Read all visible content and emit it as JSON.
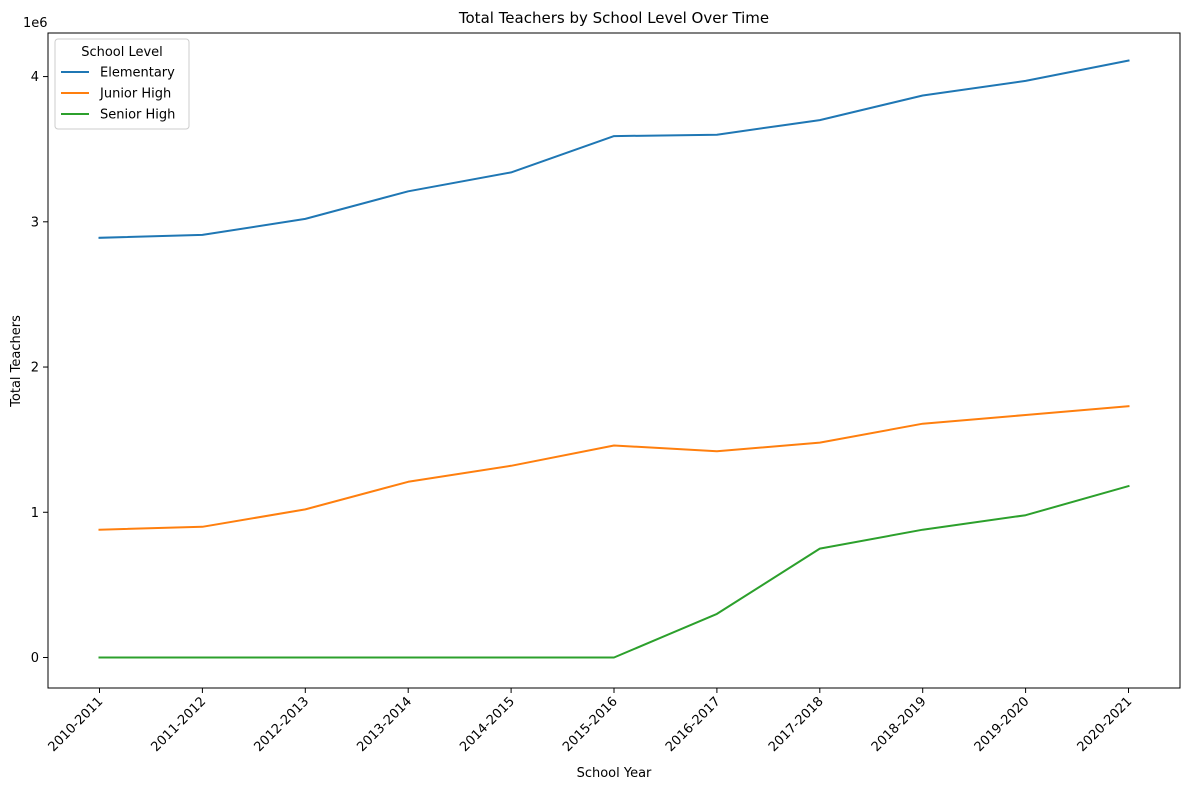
{
  "chart_data": {
    "type": "line",
    "title": "Total Teachers by School Level Over Time",
    "xlabel": "School Year",
    "ylabel": "Total Teachers",
    "y_scale_label": "1e6",
    "categories": [
      "2010-2011",
      "2011-2012",
      "2012-2013",
      "2013-2014",
      "2014-2015",
      "2015-2016",
      "2016-2017",
      "2017-2018",
      "2018-2019",
      "2019-2020",
      "2020-2021"
    ],
    "yticks": [
      0,
      1,
      2,
      3,
      4
    ],
    "ylim": [
      -0.21,
      4.3
    ],
    "grid": false,
    "legend": {
      "title": "School Level",
      "position": "top-left"
    },
    "series": [
      {
        "name": "Elementary",
        "color": "#1f77b4",
        "values": [
          2.89,
          2.91,
          3.02,
          3.21,
          3.34,
          3.59,
          3.6,
          3.7,
          3.87,
          3.97,
          4.11
        ]
      },
      {
        "name": "Junior High",
        "color": "#ff7f0e",
        "values": [
          0.88,
          0.9,
          1.02,
          1.21,
          1.32,
          1.46,
          1.42,
          1.48,
          1.61,
          1.67,
          1.73
        ]
      },
      {
        "name": "Senior High",
        "color": "#2ca02c",
        "values": [
          0.0,
          0.0,
          0.0,
          0.0,
          0.0,
          0.0,
          0.3,
          0.75,
          0.88,
          0.98,
          1.18
        ]
      }
    ]
  }
}
